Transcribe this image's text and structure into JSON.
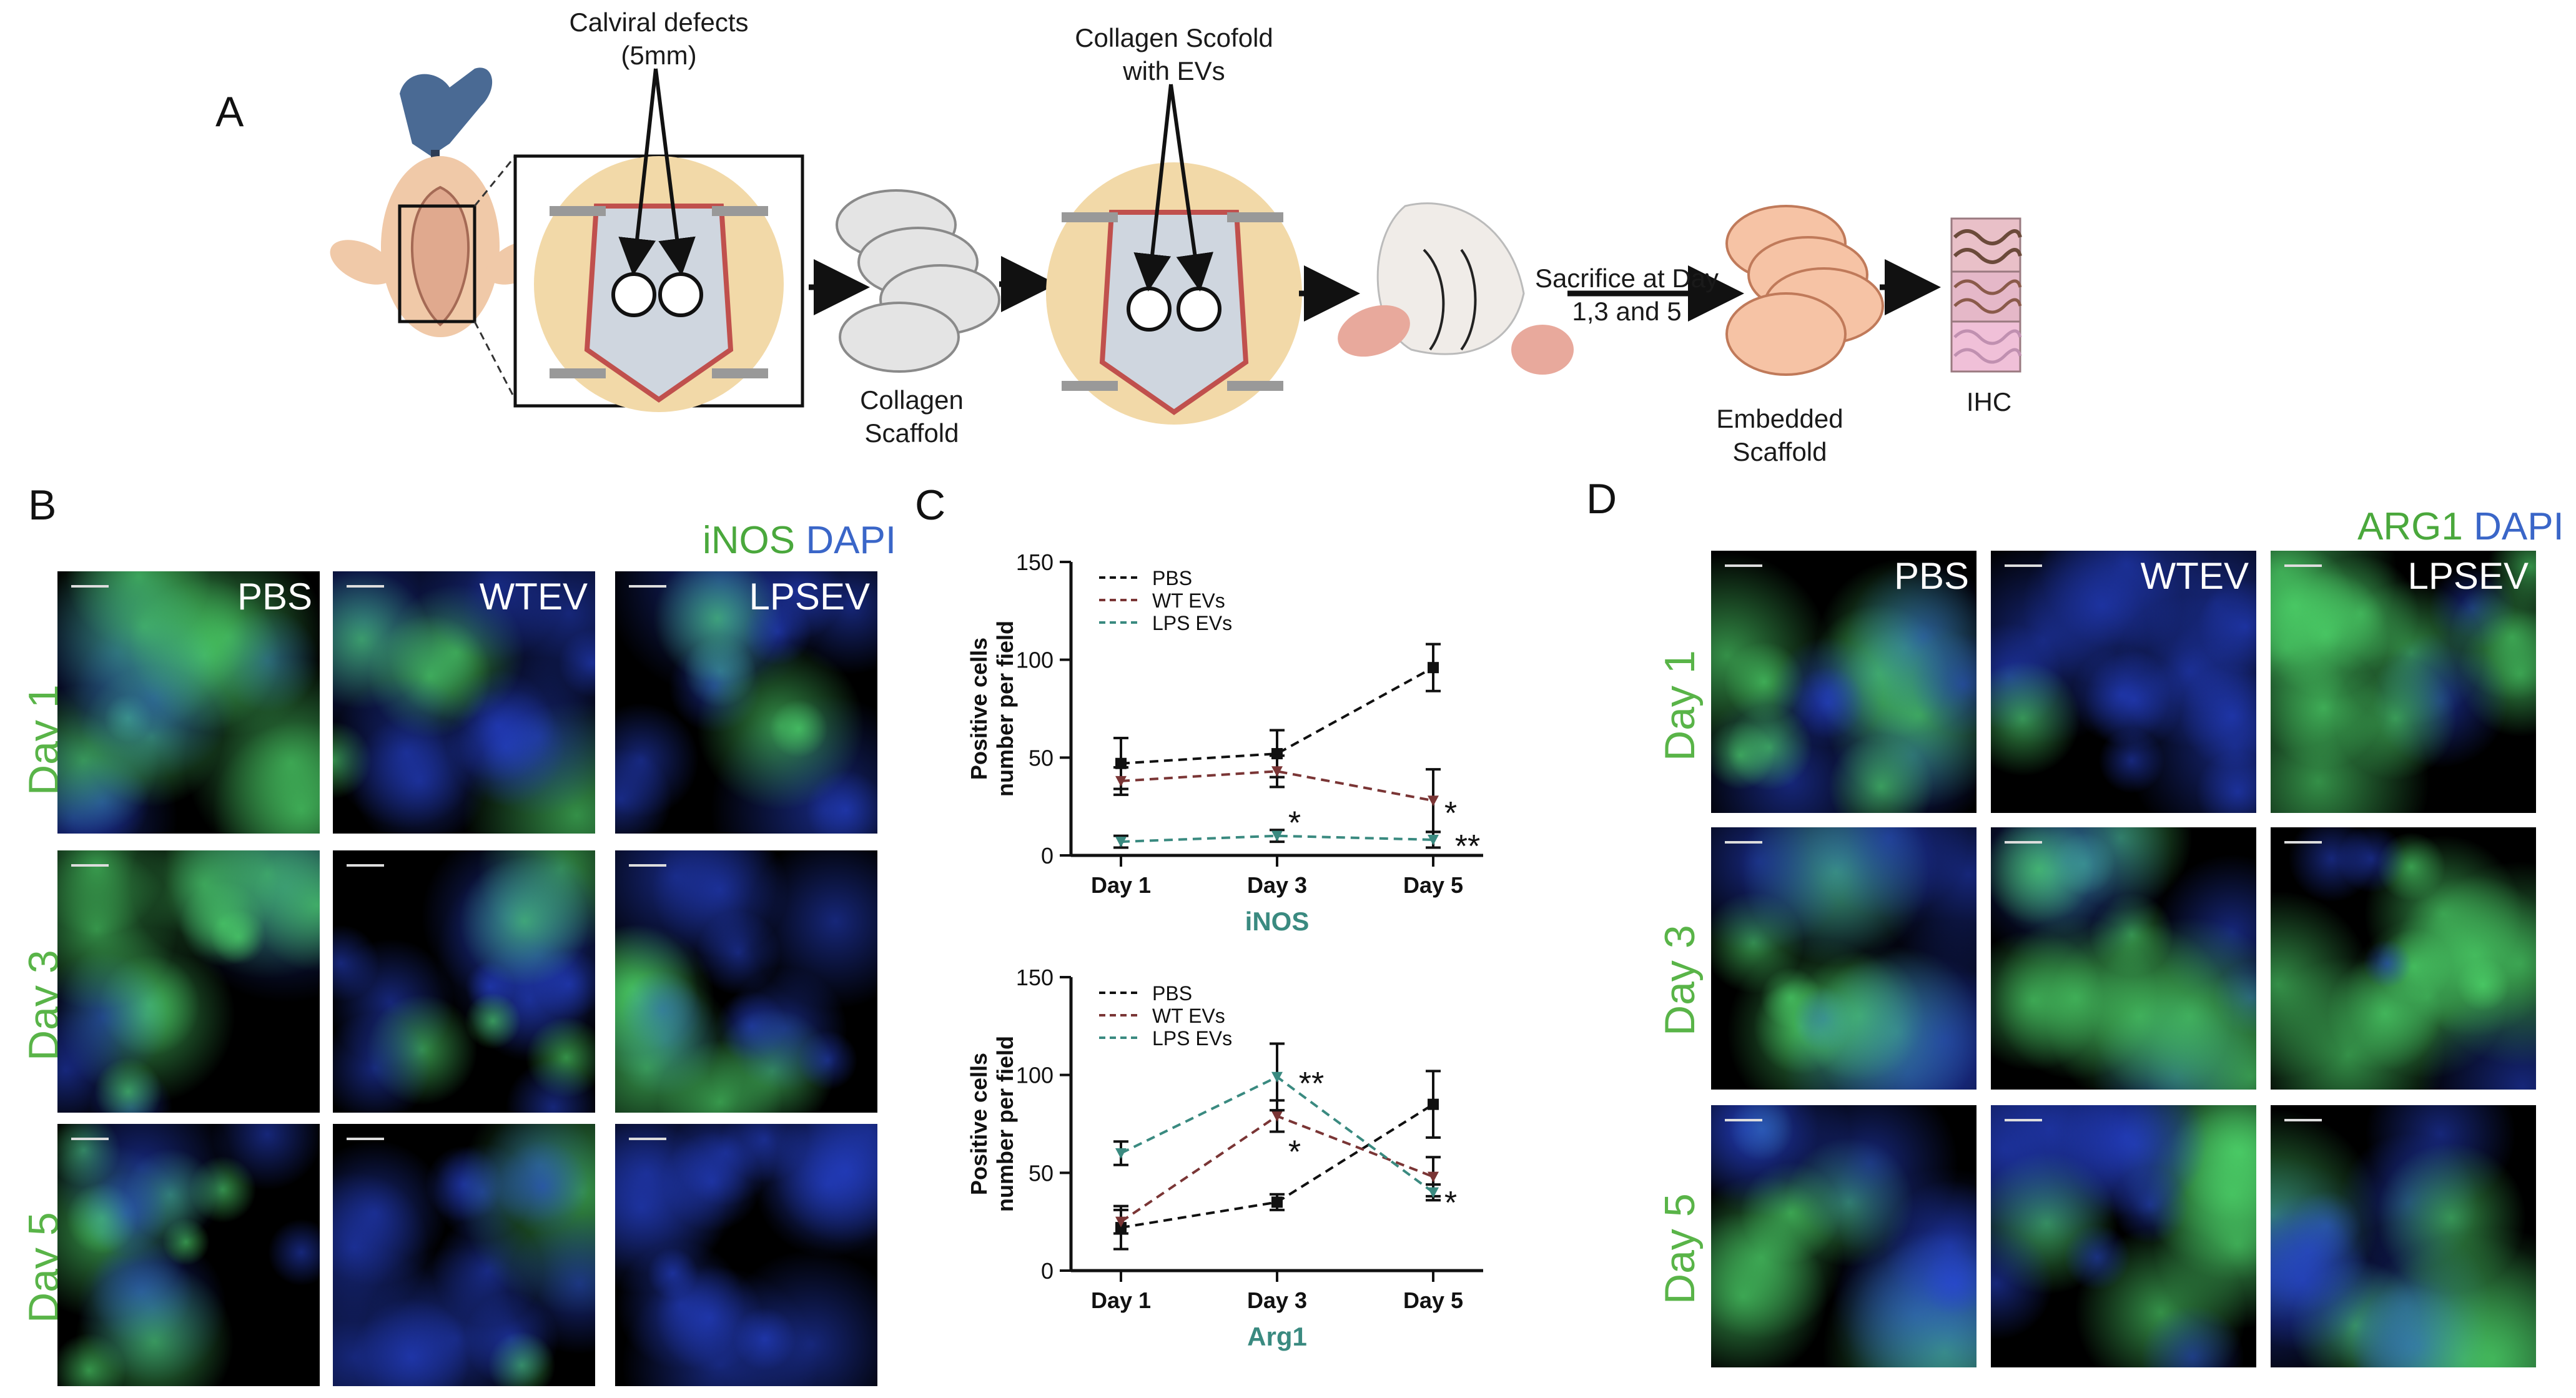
{
  "panels": {
    "A": "A",
    "B": "B",
    "C": "C",
    "D": "D"
  },
  "schematic": {
    "calvarial_line1": "Calviral defects",
    "calvarial_line2": "(5mm)",
    "collagen_scaffold_line1": "Collagen",
    "collagen_scaffold_line2": "Scaffold",
    "scaffold_evs_line1": "Collagen Scofold",
    "scaffold_evs_line2": "with EVs",
    "sacrifice_line1": "Sacrifice at Day",
    "sacrifice_line2": "1,3 and 5",
    "embedded_line1": "Embedded",
    "embedded_line2": "Scaffold",
    "ihc": "IHC"
  },
  "panel_b": {
    "stain_marker": "iNOS",
    "stain_nuclear": "DAPI",
    "columns": [
      "PBS",
      "WTEV",
      "LPSEV"
    ],
    "rows": [
      "Day 1",
      "Day 3",
      "Day 5"
    ]
  },
  "panel_d": {
    "stain_marker": "ARG1",
    "stain_nuclear": "DAPI",
    "columns": [
      "PBS",
      "WTEV",
      "LPSEV"
    ],
    "rows": [
      "Day 1",
      "Day 3",
      "Day 5"
    ]
  },
  "colors": {
    "pbs": "#111111",
    "wt_evs": "#7a3535",
    "lps_evs": "#3a8a80",
    "stain_green": "#4aa83c",
    "stain_blue": "#3a66c8",
    "day_label": "#59b448",
    "chart_title": "#3a8a80"
  },
  "chart_data": [
    {
      "type": "line",
      "title": "iNOS",
      "ylabel": "Positive cells number per field",
      "ylabel_line1": "Positive cells",
      "ylabel_line2": "number per field",
      "categories": [
        "Day 1",
        "Day 3",
        "Day 5"
      ],
      "ylim": [
        0,
        150
      ],
      "yticks": [
        0,
        50,
        100,
        150
      ],
      "legend_position": "top-left",
      "series": [
        {
          "name": "PBS",
          "values": [
            47,
            52,
            96
          ],
          "errors": [
            13,
            12,
            12
          ]
        },
        {
          "name": "WT EVs",
          "values": [
            38,
            43,
            28
          ],
          "errors": [
            7,
            8,
            16
          ]
        },
        {
          "name": "LPS EVs",
          "values": [
            7,
            10,
            8
          ],
          "errors": [
            3,
            3,
            4
          ]
        }
      ],
      "annotations": [
        {
          "text": "*",
          "x": "Day 3",
          "y": 18
        },
        {
          "text": "*",
          "x": "Day 5",
          "y": 23
        },
        {
          "text": "**",
          "x": "Day 5",
          "y": 6
        }
      ]
    },
    {
      "type": "line",
      "title": "Arg1",
      "ylabel": "Positive cells number per field",
      "ylabel_line1": "Positive cells",
      "ylabel_line2": "number per field",
      "categories": [
        "Day 1",
        "Day 3",
        "Day 5"
      ],
      "ylim": [
        0,
        150
      ],
      "yticks": [
        0,
        50,
        100,
        150
      ],
      "legend_position": "top-left",
      "series": [
        {
          "name": "PBS",
          "values": [
            22,
            35,
            85
          ],
          "errors": [
            11,
            4,
            17
          ]
        },
        {
          "name": "WT EVs",
          "values": [
            25,
            79,
            48
          ],
          "errors": [
            6,
            8,
            10
          ]
        },
        {
          "name": "LPS EVs",
          "values": [
            60,
            99,
            40
          ],
          "errors": [
            6,
            17,
            4
          ]
        }
      ],
      "annotations": [
        {
          "text": "**",
          "x": "Day 3",
          "y": 97
        },
        {
          "text": "*",
          "x": "Day 3",
          "y": 62
        },
        {
          "text": "*",
          "x": "Day 5",
          "y": 36
        }
      ]
    }
  ]
}
